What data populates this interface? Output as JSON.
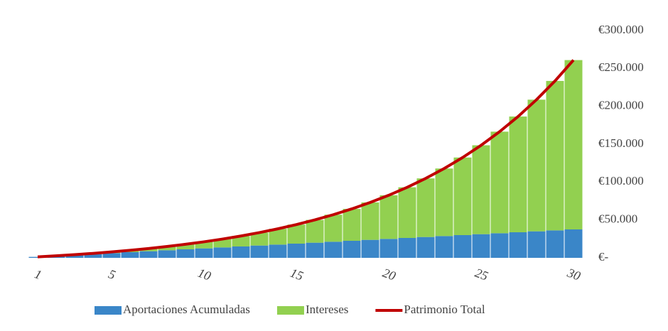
{
  "chart_data": {
    "type": "stacked-bar-line",
    "categories": [
      "1",
      null,
      null,
      null,
      "5",
      null,
      null,
      null,
      null,
      "10",
      null,
      null,
      null,
      null,
      "15",
      null,
      null,
      null,
      null,
      "20",
      null,
      null,
      null,
      null,
      "25",
      null,
      null,
      null,
      null,
      "30"
    ],
    "series": [
      {
        "name": "Aportaciones Acumuladas",
        "color": "#3a86c8",
        "type": "bar",
        "values": [
          1250,
          2500,
          3750,
          5000,
          6250,
          7500,
          8750,
          10000,
          11250,
          12500,
          13750,
          15000,
          16250,
          17500,
          18750,
          20000,
          21250,
          22500,
          23750,
          25000,
          26250,
          27500,
          28750,
          30000,
          31250,
          32500,
          33750,
          35000,
          36250,
          37500
        ]
      },
      {
        "name": "Intereses",
        "color": "#92d050",
        "type": "bar",
        "values": [
          0,
          141,
          438,
          909,
          1573,
          2453,
          3573,
          4960,
          6643,
          8656,
          11036,
          13824,
          17066,
          20814,
          25125,
          30060,
          35693,
          42099,
          49367,
          57593,
          66885,
          77363,
          89160,
          102425,
          117323,
          134037,
          152772,
          173756,
          197241,
          223509
        ]
      },
      {
        "name": "Patrimonio Total",
        "color": "#c00000",
        "type": "line",
        "values": [
          1250,
          2641,
          4188,
          5909,
          7823,
          9953,
          12323,
          14960,
          17893,
          21156,
          24786,
          28824,
          33316,
          38314,
          43875,
          50060,
          56943,
          64599,
          73117,
          82593,
          93135,
          104863,
          117910,
          132425,
          148573,
          166537,
          186522,
          208756,
          233491,
          261009
        ]
      }
    ],
    "ylim": [
      0,
      300000
    ],
    "yticks": [
      {
        "value": 0,
        "label": "€-"
      },
      {
        "value": 50000,
        "label": "€50.000"
      },
      {
        "value": 100000,
        "label": "€100.000"
      },
      {
        "value": 150000,
        "label": "€150.000"
      },
      {
        "value": 200000,
        "label": "€200.000"
      },
      {
        "value": 250000,
        "label": "€250.000"
      },
      {
        "value": 300000,
        "label": "€300.000"
      }
    ],
    "legend": "bottom"
  }
}
